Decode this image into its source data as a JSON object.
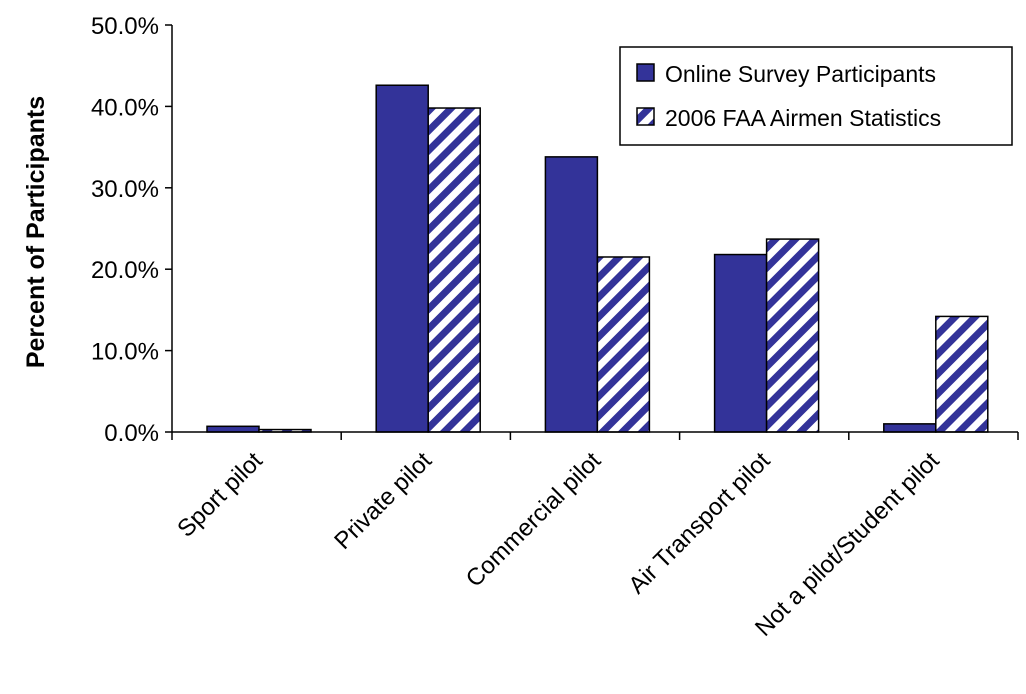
{
  "chart_data": {
    "type": "bar",
    "title": "",
    "xlabel": "",
    "ylabel": "Percent of Participants",
    "ylim": [
      0,
      50
    ],
    "ytick_values": [
      0,
      10,
      20,
      30,
      40,
      50
    ],
    "ytick_labels": [
      "0.0%",
      "10.0%",
      "20.0%",
      "30.0%",
      "40.0%",
      "50.0%"
    ],
    "grid": false,
    "legend_position": "top-right",
    "categories": [
      "Sport pilot",
      "Private pilot",
      "Commercial pilot",
      "Air Transport pilot",
      "Not a pilot/Student pilot"
    ],
    "series": [
      {
        "name": "Online Survey Participants",
        "values": [
          0.7,
          42.6,
          33.8,
          21.8,
          1.0
        ],
        "color": "#333399",
        "pattern": "solid"
      },
      {
        "name": "2006 FAA Airmen Statistics",
        "values": [
          0.3,
          39.8,
          21.5,
          23.7,
          14.2
        ],
        "color": "#333399",
        "pattern": "diagonal-stripes"
      }
    ]
  }
}
